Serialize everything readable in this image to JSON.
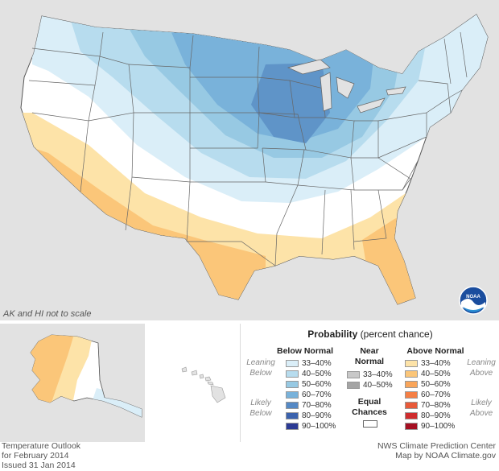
{
  "map": {
    "note": "AK and HI not to scale",
    "logo_text": "NOAA"
  },
  "legend": {
    "title": "Probability",
    "title_sub": "(percent chance)",
    "below": {
      "heading": "Below Normal",
      "leaning": [
        "Leaning",
        "Below"
      ],
      "likely": [
        "Likely",
        "Below"
      ],
      "classes": [
        {
          "label": "33–40%",
          "color": "#daeef8"
        },
        {
          "label": "40–50%",
          "color": "#b7dcee"
        },
        {
          "label": "50–60%",
          "color": "#97c9e3"
        },
        {
          "label": "60–70%",
          "color": "#79b2da"
        },
        {
          "label": "70–80%",
          "color": "#5589c5"
        },
        {
          "label": "80–90%",
          "color": "#3b62ad"
        },
        {
          "label": "90–100%",
          "color": "#2b3a94"
        }
      ]
    },
    "near": {
      "heading": [
        "Near",
        "Normal"
      ],
      "classes": [
        {
          "label": "33–40%",
          "color": "#c8c8c8"
        },
        {
          "label": "40–50%",
          "color": "#a4a4a4"
        }
      ],
      "equal": [
        "Equal",
        "Chances"
      ]
    },
    "above": {
      "heading": "Above Normal",
      "leaning": [
        "Leaning",
        "Above"
      ],
      "likely": [
        "Likely",
        "Above"
      ],
      "classes": [
        {
          "label": "33–40%",
          "color": "#fde3a8"
        },
        {
          "label": "40–50%",
          "color": "#fbc679"
        },
        {
          "label": "50–60%",
          "color": "#f9a55a"
        },
        {
          "label": "60–70%",
          "color": "#f57f45"
        },
        {
          "label": "70–80%",
          "color": "#e85a3a"
        },
        {
          "label": "80–90%",
          "color": "#cf2c2e"
        },
        {
          "label": "90–100%",
          "color": "#a50f22"
        }
      ]
    }
  },
  "footer": {
    "left": [
      "Temperature Outlook",
      "for February 2014",
      "Issued 31 Jan 2014"
    ],
    "right": [
      "NWS Climate Prediction Center",
      "Map by NOAA Climate.gov"
    ]
  }
}
